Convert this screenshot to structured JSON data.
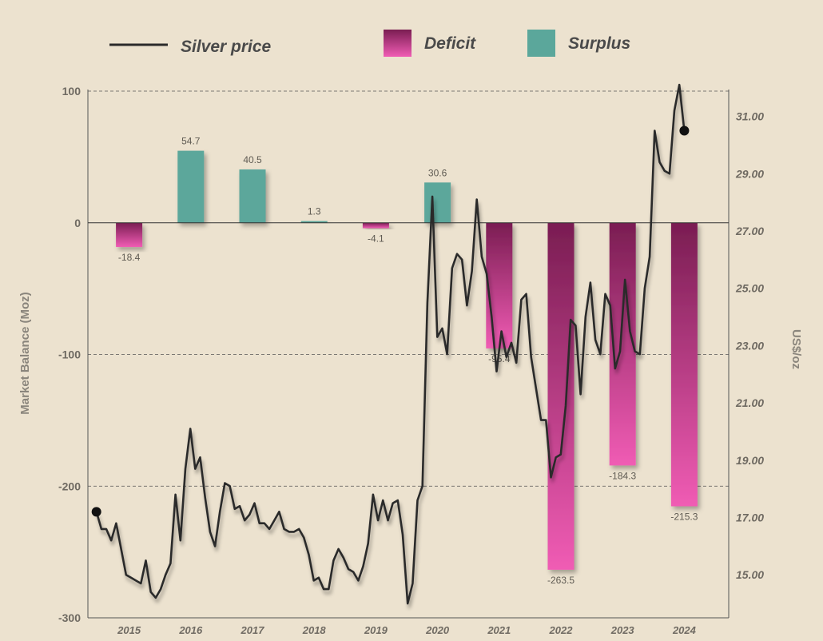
{
  "chart_data": {
    "type": "bar+line",
    "legend": {
      "price_label": "Silver price",
      "deficit_label": "Deficit",
      "surplus_label": "Surplus",
      "placement": "top"
    },
    "y_left": {
      "title": "Market Balance (Moz)",
      "range": [
        -300,
        100
      ],
      "ticks": [
        100,
        0,
        -100,
        -200,
        -300
      ],
      "tick_labels": [
        "100",
        "0",
        "-100",
        "-200",
        "-300"
      ]
    },
    "y_right": {
      "title": "US$/oz",
      "range": [
        13.5,
        31.88
      ],
      "ticks": [
        31,
        29,
        27,
        25,
        23,
        21,
        19,
        17,
        15
      ],
      "tick_labels": [
        "31.00",
        "29.00",
        "27.00",
        "25.00",
        "23.00",
        "21.00",
        "19.00",
        "17.00",
        "15.00"
      ]
    },
    "categories": [
      "2015",
      "2016",
      "2017",
      "2018",
      "2019",
      "2020",
      "2021",
      "2022",
      "2023",
      "2024"
    ],
    "balance_series": {
      "name": "Market balance (Moz)",
      "values": [
        -18.4,
        54.7,
        40.5,
        1.3,
        -4.1,
        30.6,
        -95.4,
        -263.5,
        -184.3,
        -215.3
      ],
      "labels": [
        "-18.4",
        "54.7",
        "40.5",
        "1.3",
        "-4.1",
        "30.6",
        "-95.4",
        "-263.5",
        "-184.3",
        "-215.3"
      ]
    },
    "price_series": {
      "name": "Silver price",
      "x_start": 2014.97,
      "x_end": 2024.5,
      "values": [
        17.2,
        16.6,
        16.6,
        16.2,
        16.8,
        15.9,
        15.0,
        14.9,
        14.8,
        14.7,
        15.5,
        14.4,
        14.2,
        14.5,
        15.0,
        15.4,
        17.8,
        16.2,
        18.7,
        20.1,
        18.7,
        19.1,
        17.7,
        16.5,
        16.0,
        17.2,
        18.2,
        18.1,
        17.3,
        17.4,
        16.9,
        17.1,
        17.5,
        16.8,
        16.8,
        16.6,
        16.9,
        17.2,
        16.6,
        16.5,
        16.5,
        16.6,
        16.3,
        15.7,
        14.8,
        14.9,
        14.5,
        14.5,
        15.5,
        15.9,
        15.6,
        15.2,
        15.1,
        14.8,
        15.3,
        16.1,
        17.8,
        16.9,
        17.6,
        16.9,
        17.5,
        17.6,
        16.4,
        14.0,
        14.7,
        17.6,
        18.1,
        24.5,
        28.2,
        23.3,
        23.6,
        22.7,
        25.7,
        26.2,
        26.0,
        24.4,
        25.6,
        28.1,
        26.1,
        25.5,
        24.0,
        22.1,
        23.5,
        22.6,
        23.1,
        22.4,
        24.6,
        24.8,
        22.6,
        21.5,
        20.4,
        20.4,
        18.4,
        19.1,
        19.2,
        20.9,
        23.9,
        23.7,
        21.3,
        24.0,
        25.2,
        23.2,
        22.7,
        24.8,
        24.4,
        22.2,
        22.8,
        25.3,
        23.5,
        22.8,
        22.7,
        25.0,
        26.1,
        30.5,
        29.4,
        29.1,
        29.0,
        31.2,
        32.1,
        30.5
      ]
    }
  },
  "colors": {
    "background": "#ece2cf",
    "deficit_top": "#7a1d52",
    "deficit_bottom": "#f05cb4",
    "surplus": "#5ba79b",
    "price_line": "#2b2b2b",
    "grid": "#555555"
  }
}
